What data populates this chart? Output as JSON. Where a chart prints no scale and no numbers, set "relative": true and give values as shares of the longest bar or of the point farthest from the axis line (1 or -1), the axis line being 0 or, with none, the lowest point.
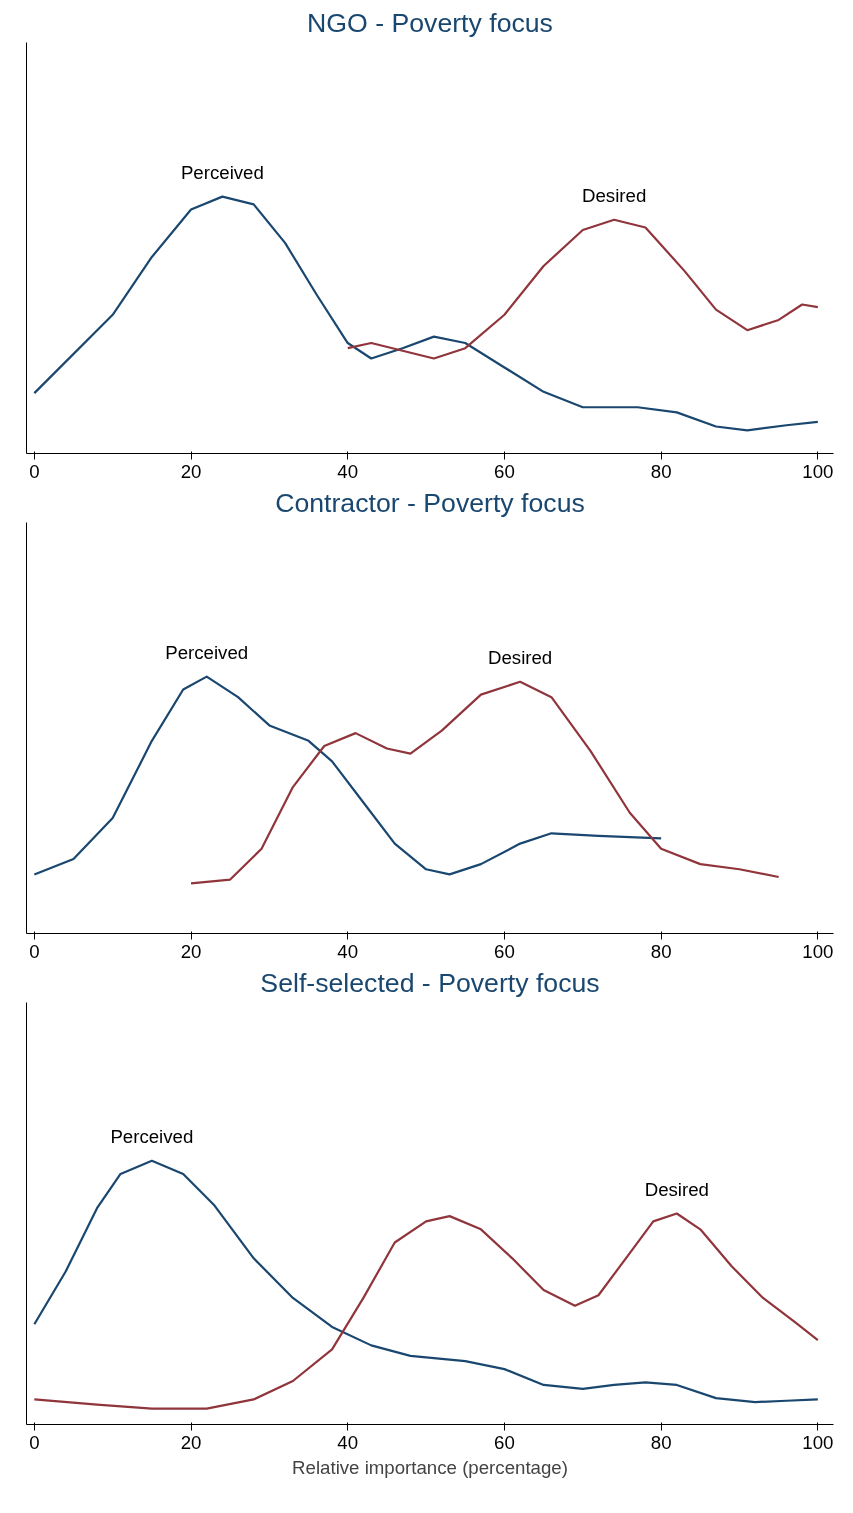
{
  "chart_data": [
    {
      "type": "line",
      "title": "NGO - Poverty focus",
      "relative": true,
      "xlim": [
        -1,
        102
      ],
      "xticks": [
        0,
        20,
        40,
        60,
        80,
        100
      ],
      "grid": false,
      "series": [
        {
          "name": "Perceived",
          "color": "#1a476f",
          "x": [
            0,
            10,
            15,
            20,
            24,
            28,
            32,
            36,
            40,
            43,
            47,
            51,
            55,
            60,
            65,
            70,
            77,
            82,
            87,
            91,
            96,
            100
          ],
          "values": [
            0.235,
            0.54,
            0.765,
            0.95,
            1.0,
            0.97,
            0.82,
            0.62,
            0.43,
            0.37,
            0.41,
            0.455,
            0.43,
            0.335,
            0.24,
            0.18,
            0.18,
            0.16,
            0.105,
            0.09,
            0.11,
            0.123
          ]
        },
        {
          "name": "Desired",
          "color": "#90353b",
          "x": [
            40,
            43,
            47,
            51,
            55,
            60,
            65,
            70,
            74,
            78,
            83,
            87,
            91,
            95,
            98,
            100
          ],
          "values": [
            0.41,
            0.43,
            0.4,
            0.37,
            0.41,
            0.54,
            0.73,
            0.87,
            0.91,
            0.88,
            0.71,
            0.56,
            0.48,
            0.52,
            0.58,
            0.57
          ]
        }
      ]
    },
    {
      "type": "line",
      "title": "Contractor - Poverty focus",
      "relative": true,
      "xlim": [
        -1,
        102
      ],
      "xticks": [
        0,
        20,
        40,
        60,
        80,
        100
      ],
      "grid": false,
      "series": [
        {
          "name": "Perceived",
          "color": "#1a476f",
          "x": [
            0,
            5,
            10,
            15,
            19,
            22,
            26,
            30,
            35,
            38,
            42,
            46,
            50,
            53,
            57,
            62,
            66,
            72,
            80
          ],
          "values": [
            0.23,
            0.29,
            0.45,
            0.75,
            0.95,
            1.0,
            0.92,
            0.81,
            0.75,
            0.67,
            0.51,
            0.35,
            0.25,
            0.23,
            0.27,
            0.35,
            0.39,
            0.38,
            0.37
          ]
        },
        {
          "name": "Desired",
          "color": "#90353b",
          "x": [
            20,
            25,
            29,
            33,
            37,
            41,
            45,
            48,
            52,
            57,
            62,
            66,
            71,
            76,
            80,
            85,
            90,
            95
          ],
          "values": [
            0.195,
            0.21,
            0.33,
            0.57,
            0.73,
            0.78,
            0.72,
            0.7,
            0.79,
            0.93,
            0.98,
            0.92,
            0.71,
            0.47,
            0.33,
            0.27,
            0.25,
            0.22
          ]
        }
      ]
    },
    {
      "type": "line",
      "title": "Self-selected - Poverty focus",
      "xlabel": "Relative importance (percentage)",
      "relative": true,
      "xlim": [
        -1,
        102
      ],
      "xticks": [
        0,
        20,
        40,
        60,
        80,
        100
      ],
      "grid": false,
      "series": [
        {
          "name": "Perceived",
          "color": "#1a476f",
          "x": [
            0,
            4,
            8,
            11,
            15,
            19,
            23,
            28,
            33,
            38,
            43,
            48,
            55,
            60,
            65,
            70,
            74,
            78,
            82,
            87,
            92,
            96,
            100
          ],
          "values": [
            0.38,
            0.58,
            0.82,
            0.95,
            1.0,
            0.95,
            0.83,
            0.63,
            0.48,
            0.37,
            0.3,
            0.26,
            0.24,
            0.21,
            0.15,
            0.135,
            0.15,
            0.16,
            0.15,
            0.1,
            0.085,
            0.09,
            0.095
          ]
        },
        {
          "name": "Desired",
          "color": "#90353b",
          "x": [
            0,
            8,
            15,
            22,
            28,
            33,
            38,
            42,
            46,
            50,
            53,
            57,
            61,
            65,
            69,
            72,
            76,
            79,
            82,
            85,
            89,
            93,
            97,
            100
          ],
          "values": [
            0.095,
            0.075,
            0.06,
            0.06,
            0.095,
            0.165,
            0.285,
            0.48,
            0.69,
            0.77,
            0.79,
            0.74,
            0.63,
            0.51,
            0.45,
            0.49,
            0.65,
            0.77,
            0.8,
            0.74,
            0.6,
            0.48,
            0.39,
            0.32
          ]
        }
      ]
    }
  ]
}
